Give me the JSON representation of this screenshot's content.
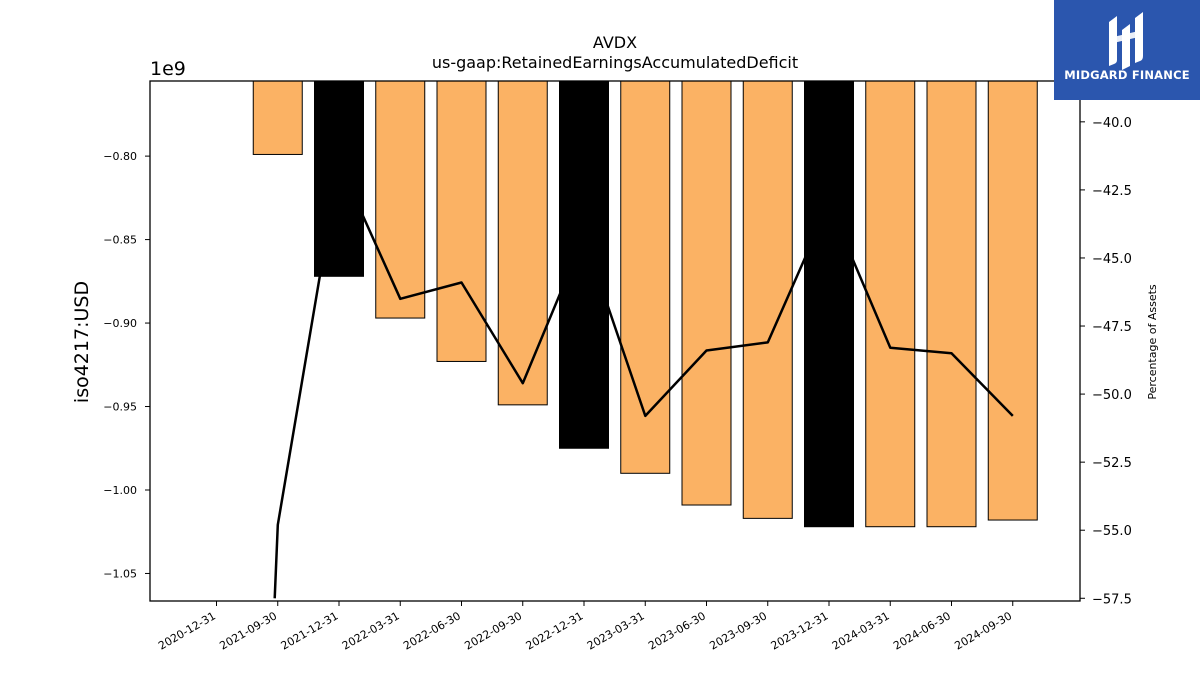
{
  "chart_data": {
    "type": "bar",
    "title": "AVDX",
    "subtitle": "us-gaap:RetainedEarningsAccumulatedDeficit",
    "ylabel": "iso4217:USD",
    "y_multiplier": "1e9",
    "y2label": "Percentage of Assets",
    "categories": [
      "2020-12-31",
      "2021-09-30",
      "2021-12-31",
      "2022-03-31",
      "2022-06-30",
      "2022-09-30",
      "2022-12-31",
      "2023-03-31",
      "2023-06-30",
      "2023-09-30",
      "2023-12-31",
      "2024-03-31",
      "2024-06-30",
      "2024-09-30"
    ],
    "bar_values": [
      null,
      -0.799,
      -0.872,
      -0.897,
      -0.923,
      -0.949,
      -0.975,
      -0.99,
      -1.009,
      -1.017,
      -1.022,
      -1.022,
      -1.022,
      -1.018
    ],
    "bar_colors": [
      "#fbb264",
      "#fbb264",
      "#000000",
      "#fbb264",
      "#fbb264",
      "#fbb264",
      "#000000",
      "#fbb264",
      "#fbb264",
      "#fbb264",
      "#000000",
      "#fbb264",
      "#fbb264",
      "#fbb264"
    ],
    "line_values": [
      null,
      -54.8,
      -41.5,
      -46.5,
      -45.9,
      -49.6,
      -44.2,
      -50.8,
      -48.4,
      -48.1,
      -43.0,
      -48.3,
      -48.5,
      -50.8
    ],
    "line_start_value": -57.5,
    "ylim": [
      -1.0665,
      -0.755
    ],
    "y2lim": [
      -57.6,
      -38.5
    ],
    "yticks": [
      -0.8,
      -0.85,
      -0.9,
      -0.95,
      -1.0,
      -1.05
    ],
    "yticklabels": [
      "−0.80",
      "−0.85",
      "−0.90",
      "−0.95",
      "−1.00",
      "−1.05"
    ],
    "y2ticks": [
      -40.0,
      -42.5,
      -45.0,
      -47.5,
      -50.0,
      -52.5,
      -55.0,
      -57.5
    ],
    "y2ticklabels": [
      "−40.0",
      "−42.5",
      "−45.0",
      "−47.5",
      "−50.0",
      "−52.5",
      "−55.0",
      "−57.5"
    ],
    "grid": false,
    "legend": "none"
  },
  "logo": {
    "text": "MIDGARD FINANCE",
    "background": "#2b56ae"
  }
}
